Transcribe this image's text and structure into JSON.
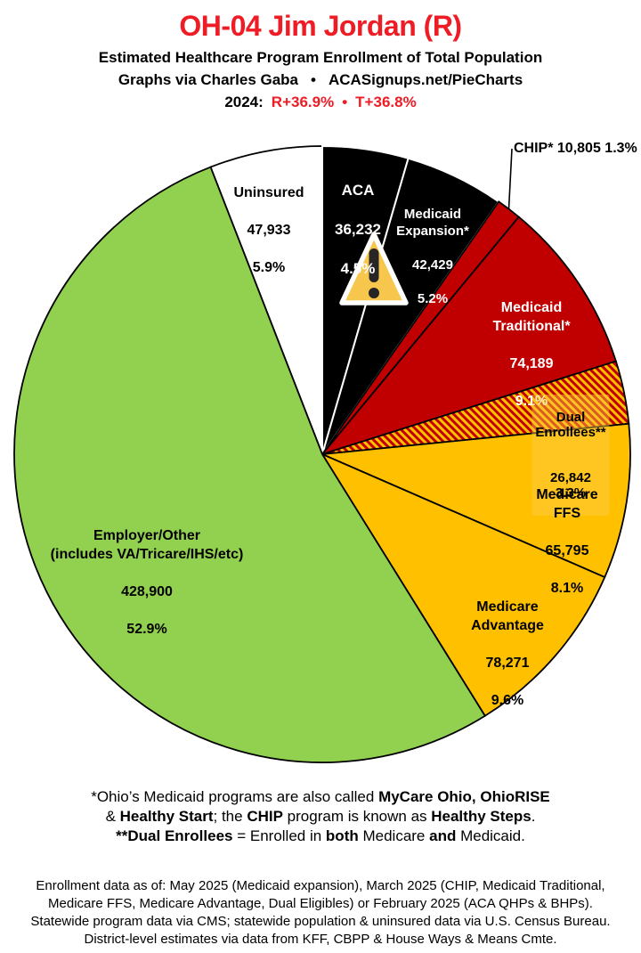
{
  "header": {
    "title": "OH-04 Jim Jordan (R)",
    "subtitle": "Estimated Healthcare Program Enrollment of Total Population",
    "credit_left": "Graphs via Charles Gaba",
    "credit_separator": "•",
    "credit_right": "ACASignups.net/PieCharts",
    "election": {
      "prefix": "2024:",
      "r_result": "R+36.9%",
      "separator": "•",
      "t_result": "T+36.8%"
    }
  },
  "colors": {
    "title_red": "#EE1C25",
    "pie_black": "#000000",
    "pie_red": "#C00000",
    "pie_gold": "#FFC000",
    "pie_green": "#92D050",
    "pie_white": "#FFFFFF",
    "warning_fill": "#F7C64C",
    "warning_mark": "#262626"
  },
  "chart_data": {
    "type": "pie",
    "title": "Estimated Healthcare Program Enrollment of Total Population",
    "start_angle_deg": 0,
    "direction": "clockwise",
    "slices": [
      {
        "key": "aca",
        "label": "ACA",
        "value": 36232,
        "display_value": "36,232",
        "pct": 4.5,
        "display_pct": "4.5%",
        "color": "#000000",
        "stroke": "#FFFFFF",
        "text_color": "#FFFFFF"
      },
      {
        "key": "medicaid-expansion",
        "label": "Medicaid\nExpansion*",
        "value": 42429,
        "display_value": "42,429",
        "pct": 5.2,
        "display_pct": "5.2%",
        "color": "#000000",
        "stroke": "#FFFFFF",
        "text_color": "#FFFFFF"
      },
      {
        "key": "chip",
        "label": "CHIP*",
        "value": 10805,
        "display_value": "10,805",
        "pct": 1.3,
        "display_pct": "1.3%",
        "color": "#C00000",
        "stroke": "#000000",
        "text_color": "#000000",
        "callout": true
      },
      {
        "key": "medicaid-traditional",
        "label": "Medicaid\nTraditional*",
        "value": 74189,
        "display_value": "74,189",
        "pct": 9.1,
        "display_pct": "9.1%",
        "color": "#C00000",
        "stroke": "#000000",
        "text_color": "#FFFFFF"
      },
      {
        "key": "dual-enrollees",
        "label": "Dual Enrollees**",
        "value": 26842,
        "display_value": "26,842",
        "pct": 3.3,
        "display_pct": "3.3%",
        "fill": "hatch",
        "hatch_colors": [
          "#C00000",
          "#FFC000"
        ],
        "stroke": "#000000",
        "text_color": "#000000"
      },
      {
        "key": "medicare-ffs",
        "label": "Medicare FFS",
        "value": 65795,
        "display_value": "65,795",
        "pct": 8.1,
        "display_pct": "8.1%",
        "color": "#FFC000",
        "stroke": "#000000",
        "text_color": "#000000"
      },
      {
        "key": "medicare-advantage",
        "label": "Medicare\nAdvantage",
        "value": 78271,
        "display_value": "78,271",
        "pct": 9.6,
        "display_pct": "9.6%",
        "color": "#FFC000",
        "stroke": "#000000",
        "text_color": "#000000"
      },
      {
        "key": "employer-other",
        "label": "Employer/Other\n(includes VA/Tricare/IHS/etc)",
        "value": 428900,
        "display_value": "428,900",
        "pct": 52.9,
        "display_pct": "52.9%",
        "color": "#92D050",
        "stroke": "#000000",
        "text_color": "#000000"
      },
      {
        "key": "uninsured",
        "label": "Uninsured",
        "value": 47933,
        "display_value": "47,933",
        "pct": 5.9,
        "display_pct": "5.9%",
        "color": "#FFFFFF",
        "stroke": "#000000",
        "text_color": "#000000"
      }
    ]
  },
  "footnote_programs": {
    "line1": [
      {
        "text": "*Ohio’s Medicaid programs are also called ",
        "bold": false
      },
      {
        "text": "MyCare Ohio, OhioRISE",
        "bold": true
      }
    ],
    "line2": [
      {
        "text": "& ",
        "bold": false
      },
      {
        "text": "Healthy Start",
        "bold": true
      },
      {
        "text": "; the ",
        "bold": false
      },
      {
        "text": "CHIP",
        "bold": true
      },
      {
        "text": " program is known as ",
        "bold": false
      },
      {
        "text": "Healthy Steps",
        "bold": true
      },
      {
        "text": ".",
        "bold": false
      }
    ],
    "line3": [
      {
        "text": "**Dual Enrollees",
        "bold": true
      },
      {
        "text": " = Enrolled in ",
        "bold": false
      },
      {
        "text": "both",
        "bold": true
      },
      {
        "text": " Medicare ",
        "bold": false
      },
      {
        "text": "and",
        "bold": true
      },
      {
        "text": " Medicaid.",
        "bold": false
      }
    ]
  },
  "footnote_sources": [
    "Enrollment data as of: May 2025 (Medicaid expansion), March 2025 (CHIP, Medicaid Traditional,",
    "Medicare FFS, Medicare Advantage, Dual Eligibles) or February 2025 (ACA QHPs & BHPs).",
    "Statewide program data via CMS; statewide population & uninsured data via U.S. Census Bureau.",
    "District-level estimates via data from KFF, CBPP & House Ways & Means Cmte."
  ]
}
